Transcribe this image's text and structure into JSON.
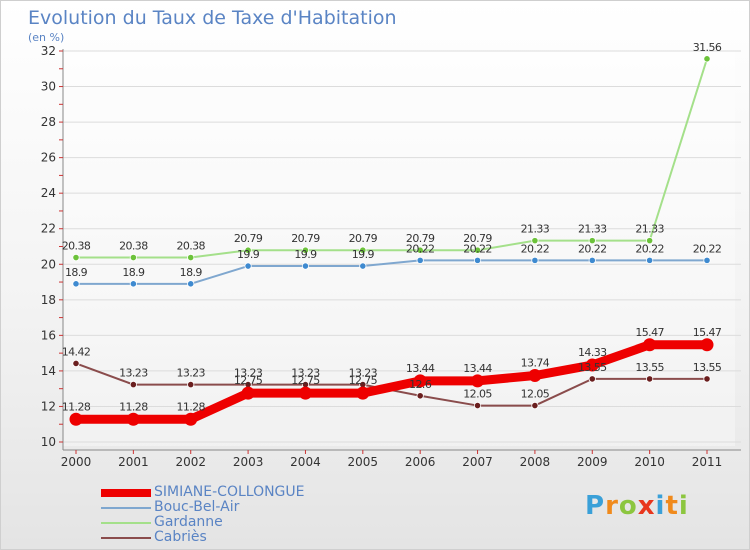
{
  "header": {
    "title": "Evolution du Taux de Taxe d'Habitation",
    "unit": "(en %)"
  },
  "brand": {
    "letters": [
      "P",
      "r",
      "o",
      "x",
      "i",
      "t",
      "i"
    ],
    "colors": [
      "#3aa0d8",
      "#f08a1c",
      "#8cc63f",
      "#e8361d",
      "#3aa0d8",
      "#f08a1c",
      "#8cc63f"
    ]
  },
  "chart_data": {
    "type": "line",
    "title": "Evolution du Taux de Taxe d'Habitation",
    "ylabel": "(en %)",
    "xlabel": "",
    "x": [
      "2000",
      "2001",
      "2002",
      "2003",
      "2004",
      "2005",
      "2006",
      "2007",
      "2008",
      "2009",
      "2010",
      "2011"
    ],
    "ylim": [
      10,
      32
    ],
    "yticks": [
      10,
      12,
      14,
      16,
      18,
      20,
      22,
      24,
      26,
      28,
      30,
      32
    ],
    "grid": "horizontal",
    "legend_position": "bottom-left",
    "series": [
      {
        "name": "SIMIANE-COLLONGUE",
        "color": "#ee0000",
        "width": 9,
        "values": [
          11.28,
          11.28,
          11.28,
          12.75,
          12.75,
          12.75,
          13.44,
          13.44,
          13.74,
          14.33,
          15.47,
          15.47
        ],
        "labels": [
          "11.28",
          "11.28",
          "11.28",
          "12.75",
          "12.75",
          "12.75",
          "13.44",
          "13.44",
          "13.74",
          "14.33",
          "15.47",
          "15.47"
        ]
      },
      {
        "name": "Bouc-Bel-Air",
        "color": "#7fa7cf",
        "marker": "#3e8ad0",
        "width": 2,
        "values": [
          18.9,
          18.9,
          18.9,
          19.9,
          19.9,
          19.9,
          20.22,
          20.22,
          20.22,
          20.22,
          20.22,
          20.22
        ],
        "labels": [
          "18.9",
          "18.9",
          "18.9",
          "19.9",
          "19.9",
          "19.9",
          "20.22",
          "20.22",
          "20.22",
          "20.22",
          "20.22",
          "20.22"
        ]
      },
      {
        "name": "Gardanne",
        "color": "#a4e08a",
        "marker": "#6cc23a",
        "width": 2,
        "values": [
          20.38,
          20.38,
          20.38,
          20.79,
          20.79,
          20.79,
          20.79,
          20.79,
          21.33,
          21.33,
          21.33,
          31.56
        ],
        "labels": [
          "20.38",
          "20.38",
          "20.38",
          "20.79",
          "20.79",
          "20.79",
          "20.79",
          "20.79",
          "21.33",
          "21.33",
          "21.33",
          "31.56"
        ]
      },
      {
        "name": "Cabriès",
        "color": "#8a4c4c",
        "marker": "#6a1e1e",
        "width": 2,
        "values": [
          14.42,
          13.23,
          13.23,
          13.23,
          13.23,
          13.23,
          12.6,
          12.05,
          12.05,
          13.55,
          13.55,
          13.55
        ],
        "labels": [
          "14.42",
          "13.23",
          "13.23",
          "13.23",
          "13.23",
          "13.23",
          "12.6",
          "12.05",
          "12.05",
          "13.55",
          "13.55",
          "13.55"
        ]
      }
    ]
  }
}
